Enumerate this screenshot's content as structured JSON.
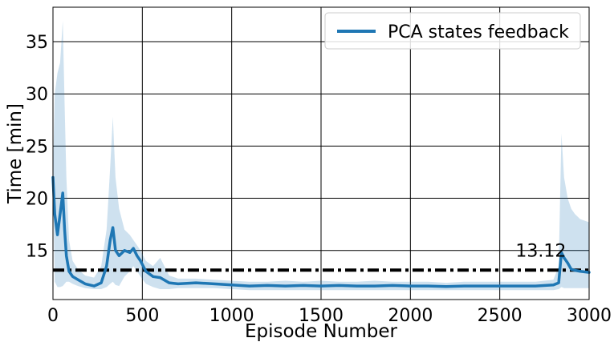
{
  "chart_data": {
    "type": "line",
    "title": "",
    "xlabel": "Episode Number",
    "ylabel": "Time [min]",
    "xlim": [
      0,
      3000
    ],
    "ylim": [
      10.3,
      38.3
    ],
    "x_ticks": [
      0,
      500,
      1000,
      1500,
      2000,
      2500,
      3000
    ],
    "x_tick_labels": [
      "0",
      "500",
      "1000",
      "1500",
      "2000",
      "2500",
      "3000"
    ],
    "y_ticks": [
      15,
      20,
      25,
      30,
      35
    ],
    "y_tick_labels": [
      "15",
      "20",
      "25",
      "30",
      "35"
    ],
    "grid": true,
    "legend_position": "top-right",
    "series": [
      {
        "name": "PCA states feedback",
        "color": "#1f77b4",
        "band_color": "#1f77b4",
        "x": [
          0,
          10,
          25,
          40,
          55,
          65,
          75,
          90,
          110,
          140,
          180,
          230,
          270,
          300,
          320,
          335,
          350,
          370,
          400,
          430,
          450,
          470,
          490,
          520,
          560,
          600,
          650,
          700,
          800,
          900,
          1000,
          1100,
          1200,
          1300,
          1400,
          1500,
          1600,
          1700,
          1800,
          1900,
          2000,
          2100,
          2200,
          2300,
          2400,
          2500,
          2600,
          2700,
          2800,
          2830,
          2845,
          2860,
          2880,
          2900,
          2920,
          2950,
          3000
        ],
        "y": [
          22,
          18.5,
          16.5,
          18.5,
          20.5,
          17.0,
          14.5,
          13.0,
          12.5,
          12.2,
          11.8,
          11.6,
          11.9,
          13.5,
          16.0,
          17.2,
          15.0,
          14.5,
          15.0,
          14.8,
          15.2,
          14.5,
          14.0,
          13.0,
          12.5,
          12.4,
          11.9,
          11.8,
          11.9,
          11.8,
          11.7,
          11.6,
          11.65,
          11.6,
          11.65,
          11.6,
          11.65,
          11.6,
          11.6,
          11.65,
          11.6,
          11.6,
          11.55,
          11.6,
          11.6,
          11.6,
          11.6,
          11.6,
          11.7,
          11.9,
          14.8,
          14.3,
          13.8,
          13.2,
          13.1,
          13.0,
          12.9
        ],
        "upper": [
          22.5,
          30,
          32,
          33,
          37,
          29,
          22,
          16,
          14,
          13.2,
          12.6,
          12.4,
          13.5,
          17,
          23,
          27.8,
          22,
          19,
          17,
          16.5,
          16,
          15.5,
          15,
          14,
          13.5,
          14.3,
          12.6,
          12.3,
          12.3,
          12.2,
          12.1,
          12.0,
          12.0,
          12.1,
          12.0,
          12.1,
          12.0,
          12.0,
          12.1,
          12.0,
          12.0,
          12.0,
          11.9,
          12.0,
          12.0,
          12.0,
          12.0,
          12.0,
          12.2,
          13.5,
          26.2,
          22,
          20,
          19,
          18.5,
          18,
          17.7
        ],
        "lower": [
          21.5,
          12,
          11.5,
          11.5,
          11.6,
          11.8,
          12,
          12,
          11.8,
          11.6,
          11.4,
          11.3,
          11.3,
          11.5,
          11.8,
          12,
          11.7,
          11.6,
          12.5,
          13,
          13.5,
          13,
          12.5,
          11.8,
          11.5,
          11.3,
          11.3,
          11.4,
          11.4,
          11.4,
          11.3,
          11.2,
          11.2,
          11.2,
          11.2,
          11.2,
          11.2,
          11.2,
          11.2,
          11.2,
          11.2,
          11.2,
          11.2,
          11.2,
          11.2,
          11.2,
          11.2,
          11.2,
          11.2,
          11.3,
          11.5,
          11.4,
          11.4,
          11.4,
          11.4,
          11.4,
          11.4
        ]
      }
    ],
    "reference_line": {
      "y": 13.12,
      "color": "#000000",
      "style": "dash-dot"
    },
    "annotations": [
      {
        "text": "13.12",
        "x": 2730,
        "y": 15.0
      }
    ]
  }
}
